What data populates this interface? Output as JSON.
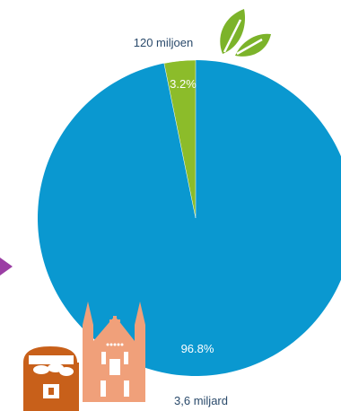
{
  "chart_data": {
    "type": "pie",
    "title": "",
    "slices": [
      {
        "value_label": "120 miljoen",
        "percent_label": "3.2%",
        "percent": 3.2,
        "color": "#8cbc2a"
      },
      {
        "value_label": "3,6 miljard",
        "percent_label": "96.8%",
        "percent": 96.8,
        "color": "#0a98d0"
      }
    ],
    "legend": "none"
  },
  "icons": {
    "top": "leaf-icon",
    "left": "arrow-right-icon",
    "bottom_a": "treasure-chest-icon",
    "bottom_b": "church-icon"
  },
  "colors": {
    "arrow": "#9b3ea4",
    "chest": "#c8601a",
    "church": "#f0a07a"
  }
}
